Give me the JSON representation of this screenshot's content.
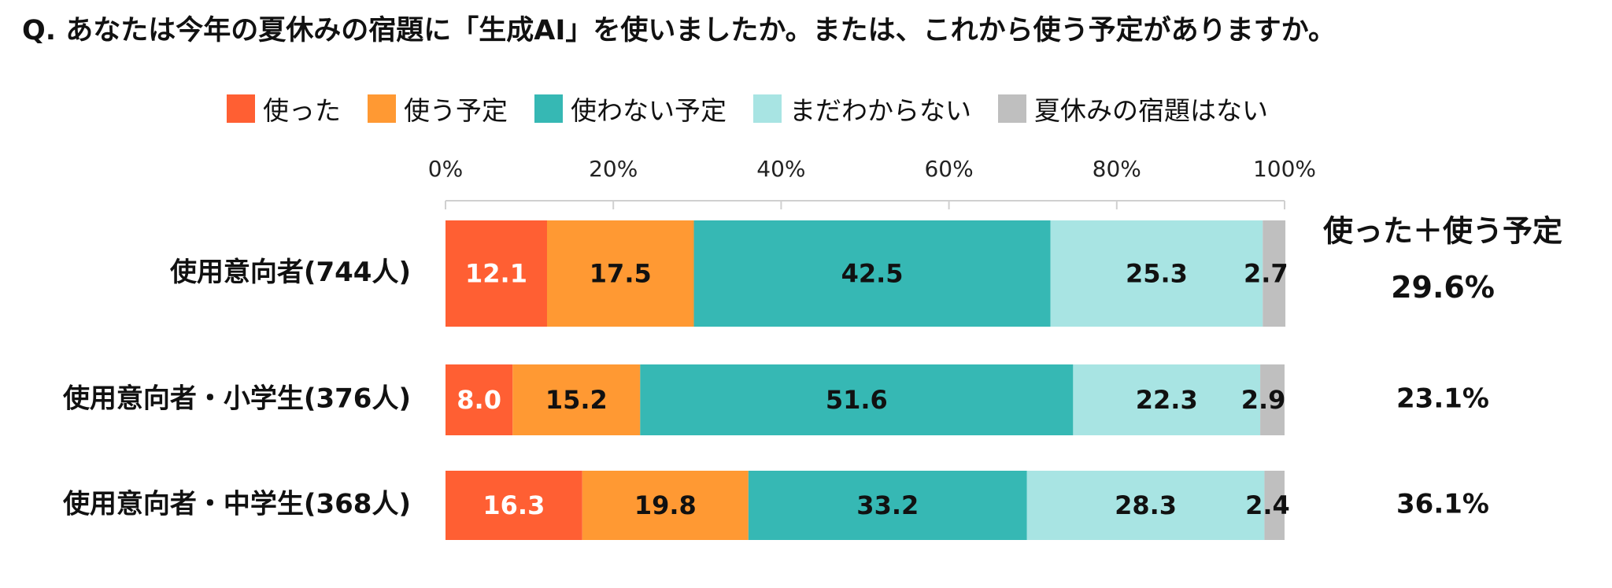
{
  "title": "Q. あなたは今年の夏休みの宿題に「生成AI」を使いましたか。または、これから使う予定がありますか。",
  "summary_header": "使った＋使う予定",
  "chart_data": {
    "type": "bar",
    "orientation": "horizontal",
    "stacked": true,
    "categories": [
      "使用意向者(744人)",
      "使用意向者・小学生(376人)",
      "使用意向者・中学生(368人)"
    ],
    "series": [
      {
        "name": "使った",
        "color": "#ff5f33",
        "values": [
          12.1,
          8.0,
          16.3
        ],
        "labels": [
          "12.1",
          "8.0",
          "16.3"
        ],
        "label_color": "#ffffff"
      },
      {
        "name": "使う予定",
        "color": "#ff9933",
        "values": [
          17.5,
          15.2,
          19.8
        ],
        "labels": [
          "17.5",
          "15.2",
          "19.8"
        ],
        "label_color": "#111111"
      },
      {
        "name": "使わない予定",
        "color": "#36b8b4",
        "values": [
          42.5,
          51.6,
          33.2
        ],
        "labels": [
          "42.5",
          "51.6",
          "33.2"
        ],
        "label_color": "#111111"
      },
      {
        "name": "まだわからない",
        "color": "#a8e4e3",
        "values": [
          25.3,
          22.3,
          28.3
        ],
        "labels": [
          "25.3",
          "22.3",
          "28.3"
        ],
        "label_color": "#111111"
      },
      {
        "name": "夏休みの宿題はない",
        "color": "#bfbfbf",
        "values": [
          2.7,
          2.9,
          2.4
        ],
        "labels": [
          "2.7",
          "2.9",
          "2.4"
        ],
        "label_color": "#111111"
      }
    ],
    "summary": [
      "29.6%",
      "23.1%",
      "36.1%"
    ],
    "xlim": [
      0,
      100
    ],
    "xticks": [
      "0%",
      "20%",
      "40%",
      "60%",
      "80%",
      "100%"
    ],
    "legend_position": "top"
  }
}
